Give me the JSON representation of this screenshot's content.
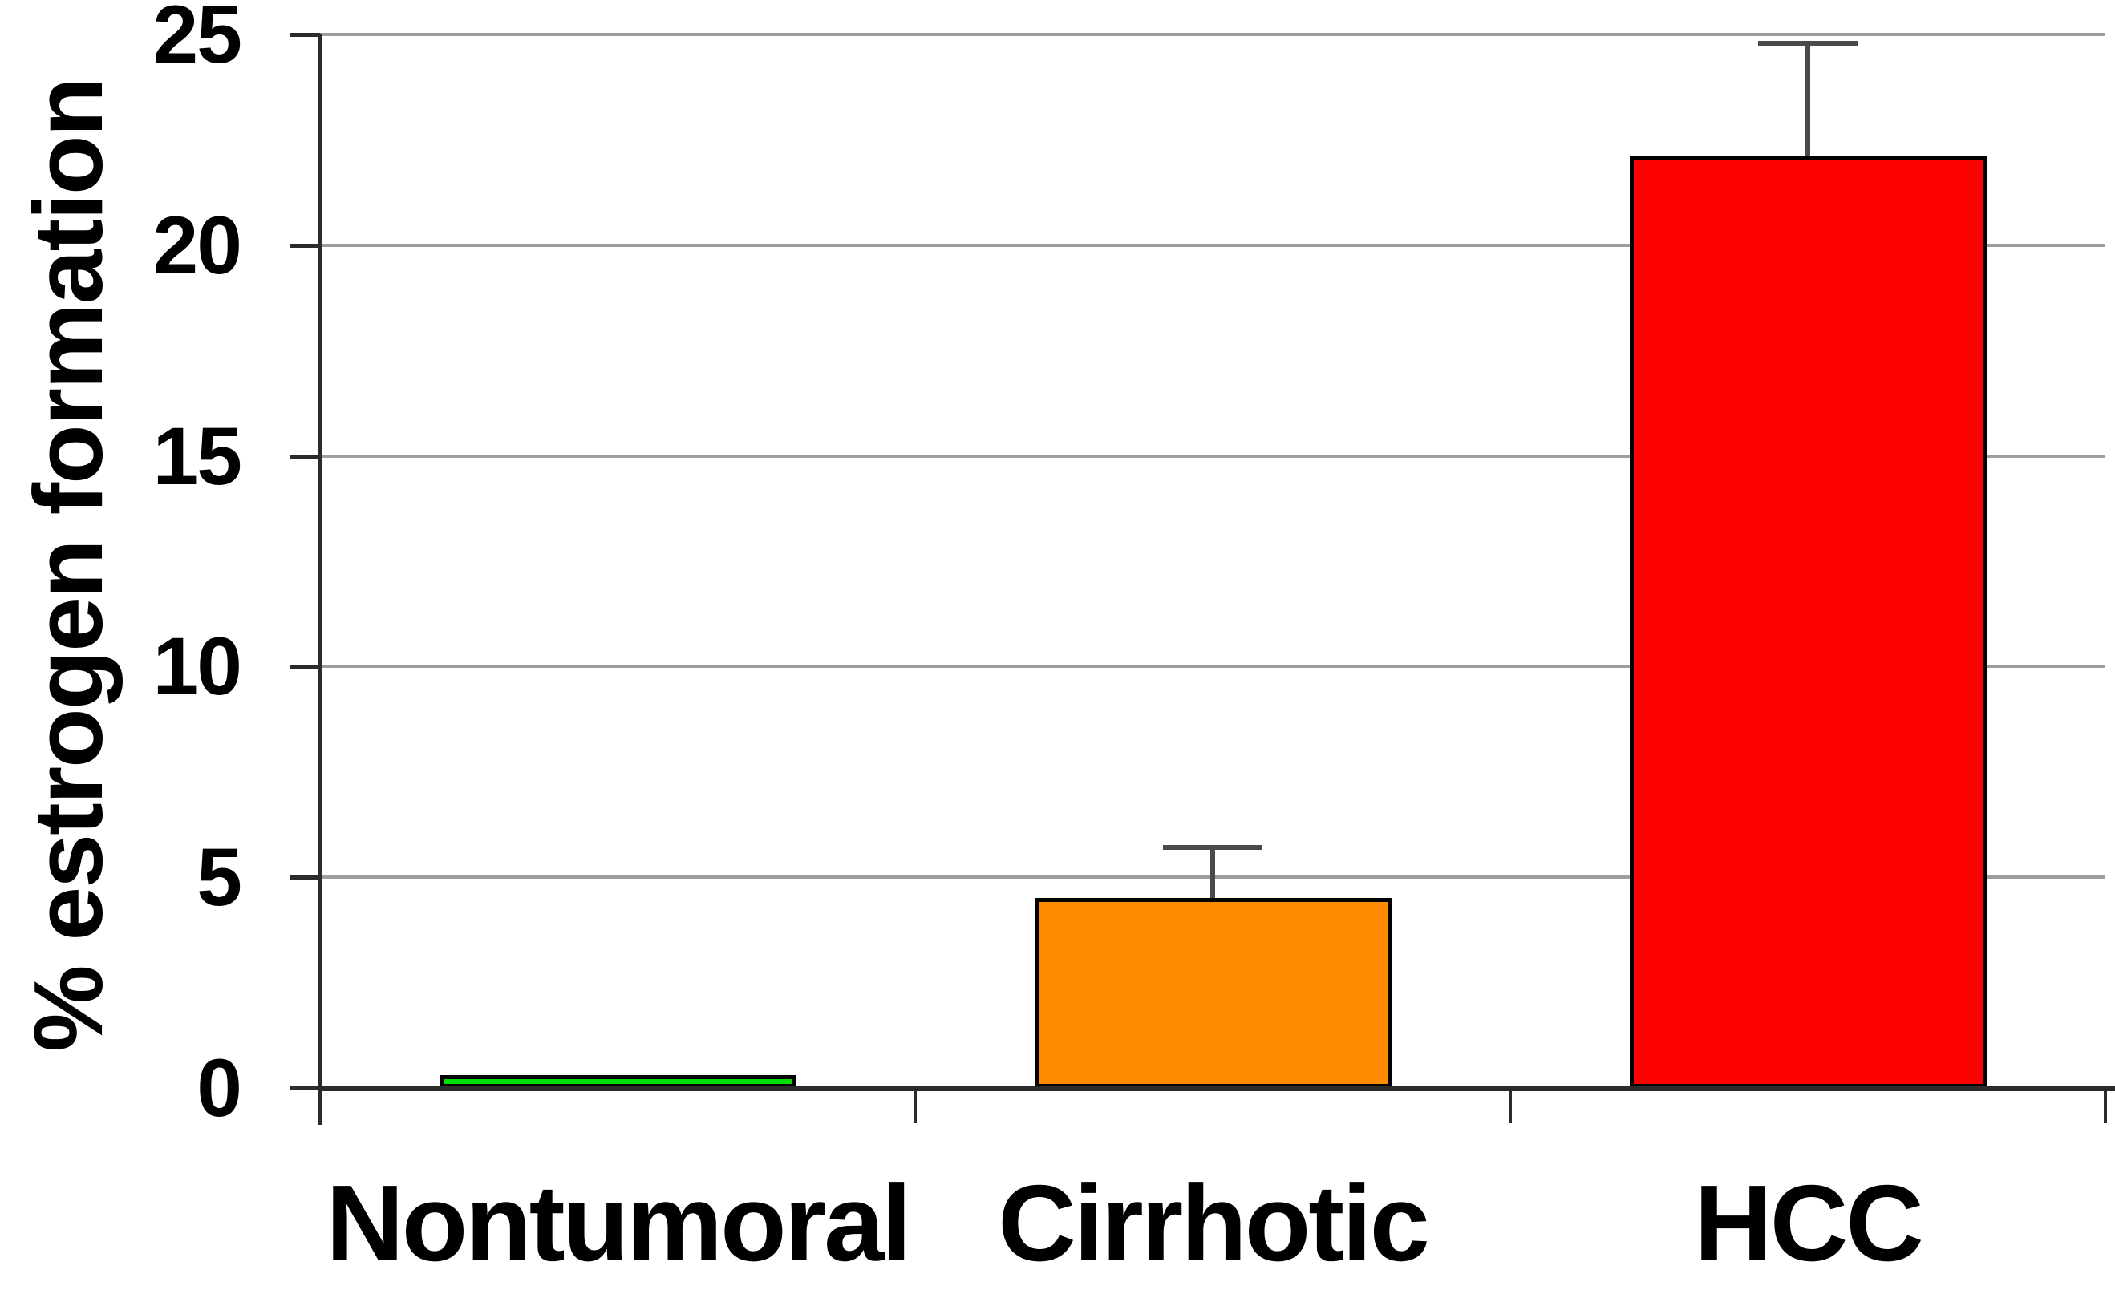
{
  "chart_data": {
    "type": "bar",
    "title": "",
    "xlabel": "",
    "ylabel": "% estrogen formation",
    "categories": [
      "Nontumoral",
      "Cirrhotic",
      "HCC"
    ],
    "values": [
      0.3,
      4.5,
      22.1
    ],
    "error_plus": [
      0,
      1.2,
      2.7
    ],
    "bar_colors": [
      "#00dd00",
      "#ff8c00",
      "#fd0000"
    ],
    "bar_border_color": "#000000",
    "ylim": [
      0,
      25
    ],
    "yticks": [
      0,
      5,
      10,
      15,
      20,
      25
    ],
    "grid": true,
    "legend_position": "none",
    "colors": {
      "gridline": "#9e9e9e",
      "axis": "#2b2b2b",
      "error_bar": "#4a4a4a",
      "text": "#000000",
      "background": "#ffffff"
    }
  }
}
